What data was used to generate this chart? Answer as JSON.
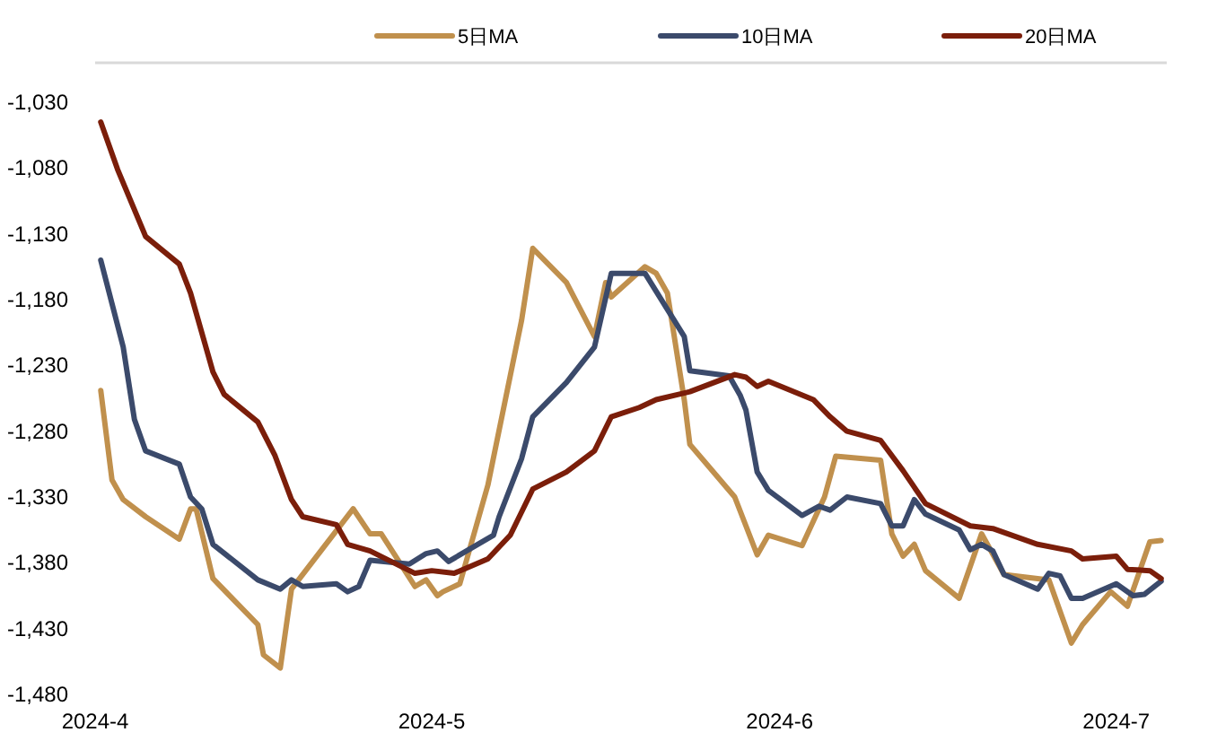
{
  "chart_data": {
    "type": "line",
    "legend": "top",
    "grid": false,
    "line_style": "solid",
    "marker": "none",
    "xlim": [
      "2024-04-01",
      "2024-07-05T12:00"
    ],
    "xticks": [
      {
        "value": "2024-04-01",
        "label": "2024-4"
      },
      {
        "value": "2024-05-01",
        "label": "2024-5"
      },
      {
        "value": "2024-06-01",
        "label": "2024-6"
      },
      {
        "value": "2024-07-01",
        "label": "2024-7"
      }
    ],
    "ylim": [
      -1480,
      -1000
    ],
    "yticks": [
      {
        "value": -1030,
        "label": "-1,030"
      },
      {
        "value": -1080,
        "label": "-1,080"
      },
      {
        "value": -1130,
        "label": "-1,130"
      },
      {
        "value": -1180,
        "label": "-1,180"
      },
      {
        "value": -1230,
        "label": "-1,230"
      },
      {
        "value": -1280,
        "label": "-1,280"
      },
      {
        "value": -1330,
        "label": "-1,330"
      },
      {
        "value": -1380,
        "label": "-1,380"
      },
      {
        "value": -1430,
        "label": "-1,430"
      },
      {
        "value": -1480,
        "label": "-1,480"
      }
    ],
    "series": [
      {
        "name": "5日MA",
        "color": "#c0904d",
        "x": [
          "2024-04-01T12:00",
          "2024-04-02T12:00",
          "2024-04-03T12:00",
          "2024-04-05T12:00",
          "2024-04-08T12:00",
          "2024-04-09T12:00",
          "2024-04-10",
          "2024-04-11T12:00",
          "2024-04-15T12:00",
          "2024-04-16",
          "2024-04-17T12:00",
          "2024-04-18T12:00",
          "2024-04-24",
          "2024-04-25T12:00",
          "2024-04-26T12:00",
          "2024-04-29T12:00",
          "2024-04-30T12:00",
          "2024-05-01T12:00",
          "2024-05-02",
          "2024-05-03T12:00",
          "2024-05-06",
          "2024-05-09",
          "2024-05-10",
          "2024-05-13",
          "2024-05-15T12:00",
          "2024-05-16T12:00",
          "2024-05-17",
          "2024-05-20",
          "2024-05-21",
          "2024-05-22",
          "2024-05-23T12:00",
          "2024-05-24",
          "2024-05-28",
          "2024-05-30",
          "2024-05-31",
          "2024-06-03",
          "2024-06-05",
          "2024-06-06",
          "2024-06-10",
          "2024-06-11",
          "2024-06-12",
          "2024-06-13",
          "2024-06-14",
          "2024-06-17",
          "2024-06-19",
          "2024-06-21",
          "2024-06-24",
          "2024-06-25",
          "2024-06-27",
          "2024-06-28",
          "2024-06-30T12:00",
          "2024-07-02",
          "2024-07-04",
          "2024-07-05"
        ],
        "values": [
          -1249,
          -1317,
          -1332,
          -1345,
          -1362,
          -1339,
          -1339,
          -1392,
          -1427,
          -1450,
          -1460,
          -1400,
          -1339,
          -1358,
          -1358,
          -1398,
          -1393,
          -1405,
          -1402,
          -1396,
          -1321,
          -1196,
          -1141,
          -1167,
          -1208,
          -1167,
          -1178,
          -1155,
          -1160,
          -1175,
          -1256,
          -1290,
          -1330,
          -1374,
          -1359,
          -1367,
          -1330,
          -1299,
          -1302,
          -1358,
          -1375,
          -1366,
          -1386,
          -1407,
          -1358,
          -1389,
          -1392,
          -1393,
          -1441,
          -1427,
          -1402,
          -1413,
          -1364,
          -1363
        ]
      },
      {
        "name": "10日MA",
        "color": "#3b4a6b",
        "x": [
          "2024-04-01T12:00",
          "2024-04-03T12:00",
          "2024-04-04T12:00",
          "2024-04-05T12:00",
          "2024-04-08T12:00",
          "2024-04-09T12:00",
          "2024-04-10T12:00",
          "2024-04-11T12:00",
          "2024-04-15T12:00",
          "2024-04-17T12:00",
          "2024-04-18T12:00",
          "2024-04-19T12:00",
          "2024-04-22T12:00",
          "2024-04-23T12:00",
          "2024-04-24T12:00",
          "2024-04-25T12:00",
          "2024-04-29",
          "2024-04-30T12:00",
          "2024-05-01T12:00",
          "2024-05-02T12:00",
          "2024-05-06T12:00",
          "2024-05-07",
          "2024-05-09",
          "2024-05-10",
          "2024-05-13",
          "2024-05-15T12:00",
          "2024-05-17",
          "2024-05-20",
          "2024-05-23T12:00",
          "2024-05-24",
          "2024-05-27T12:00",
          "2024-05-28T12:00",
          "2024-05-29",
          "2024-05-30",
          "2024-05-31",
          "2024-06-03",
          "2024-06-04T12:00",
          "2024-06-05T12:00",
          "2024-06-07",
          "2024-06-10",
          "2024-06-11",
          "2024-06-12",
          "2024-06-13",
          "2024-06-14",
          "2024-06-17",
          "2024-06-18",
          "2024-06-19",
          "2024-06-20",
          "2024-06-21",
          "2024-06-24",
          "2024-06-25",
          "2024-06-26",
          "2024-06-27",
          "2024-06-28",
          "2024-07-01",
          "2024-07-02T12:00",
          "2024-07-03T12:00",
          "2024-07-05"
        ],
        "values": [
          -1150,
          -1216,
          -1271,
          -1295,
          -1305,
          -1330,
          -1339,
          -1366,
          -1393,
          -1400,
          -1393,
          -1398,
          -1396,
          -1402,
          -1398,
          -1378,
          -1381,
          -1373,
          -1371,
          -1379,
          -1359,
          -1345,
          -1301,
          -1269,
          -1243,
          -1216,
          -1160,
          -1160,
          -1208,
          -1234,
          -1238,
          -1253,
          -1264,
          -1311,
          -1325,
          -1344,
          -1337,
          -1340,
          -1330,
          -1335,
          -1352,
          -1352,
          -1332,
          -1343,
          -1355,
          -1370,
          -1366,
          -1371,
          -1389,
          -1400,
          -1388,
          -1390,
          -1407,
          -1407,
          -1396,
          -1405,
          -1404,
          -1394
        ]
      },
      {
        "name": "20日MA",
        "color": "#7b1e0a",
        "x": [
          "2024-04-01T12:00",
          "2024-04-03",
          "2024-04-05T12:00",
          "2024-04-08T12:00",
          "2024-04-09T12:00",
          "2024-04-11T12:00",
          "2024-04-12T12:00",
          "2024-04-15T12:00",
          "2024-04-17",
          "2024-04-18T12:00",
          "2024-04-19T12:00",
          "2024-04-22T12:00",
          "2024-04-23T12:00",
          "2024-04-25T12:00",
          "2024-04-29T12:00",
          "2024-05-01",
          "2024-05-03",
          "2024-05-06",
          "2024-05-08",
          "2024-05-10",
          "2024-05-13",
          "2024-05-15T12:00",
          "2024-05-17",
          "2024-05-19T12:00",
          "2024-05-21",
          "2024-05-24",
          "2024-05-28",
          "2024-05-29",
          "2024-05-30",
          "2024-05-31",
          "2024-06-04",
          "2024-06-05T12:00",
          "2024-06-07",
          "2024-06-10",
          "2024-06-12",
          "2024-06-14",
          "2024-06-18",
          "2024-06-20",
          "2024-06-24",
          "2024-06-27",
          "2024-06-28",
          "2024-07-01",
          "2024-07-02",
          "2024-07-04",
          "2024-07-05"
        ],
        "values": [
          -1045,
          -1081,
          -1132,
          -1153,
          -1175,
          -1235,
          -1252,
          -1273,
          -1298,
          -1332,
          -1345,
          -1351,
          -1366,
          -1371,
          -1388,
          -1386,
          -1388,
          -1377,
          -1359,
          -1324,
          -1311,
          -1295,
          -1269,
          -1262,
          -1256,
          -1250,
          -1237,
          -1239,
          -1246,
          -1242,
          -1256,
          -1269,
          -1280,
          -1287,
          -1310,
          -1335,
          -1352,
          -1354,
          -1366,
          -1371,
          -1377,
          -1375,
          -1385,
          -1386,
          -1392
        ]
      }
    ]
  }
}
